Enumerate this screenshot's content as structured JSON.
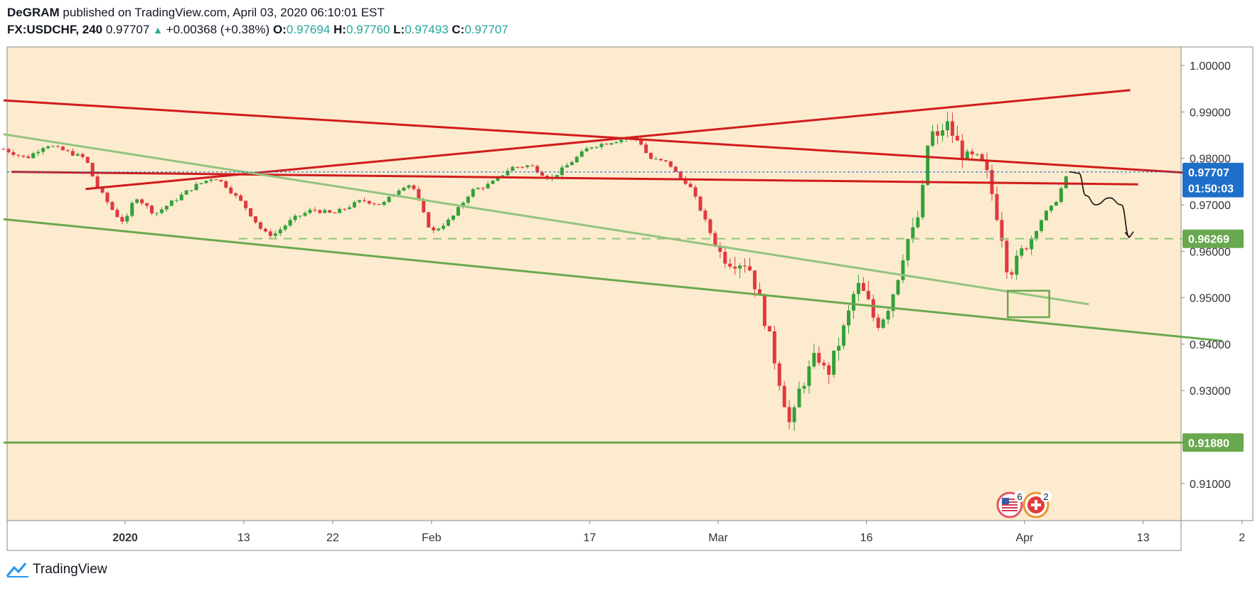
{
  "header": {
    "author": "DeGRAM",
    "published": "published on TradingView.com, April 03, 2020 06:10:01 EST",
    "symbol": "FX:USDCHF, 240",
    "last": "0.97707",
    "change": "+0.00368 (+0.38%)",
    "open_label": "O:",
    "open": "0.97694",
    "high_label": "H:",
    "high": "0.97760",
    "low_label": "L:",
    "low": "0.97493",
    "close_label": "C:",
    "close": "0.97707"
  },
  "footer": {
    "brand": "TradingView"
  },
  "colors": {
    "background": "#fdebcf",
    "up": "#33a03a",
    "down": "#e0393e",
    "red_line": "#d01c1c",
    "green_line": "#6aa84f",
    "light_green_line": "#93c47d",
    "price_label": "#1e6fc9",
    "support_label": "#6aa84f"
  },
  "chart_data": {
    "type": "candlestick",
    "symbol": "FX:USDCHF",
    "interval": "240",
    "ylim": [
      0.902,
      1.004
    ],
    "y_ticks": [
      "1.00000",
      "0.99000",
      "0.98000",
      "0.97000",
      "0.96000",
      "0.95000",
      "0.94000",
      "0.93000",
      "0.91000"
    ],
    "x_ticks": [
      {
        "label": "2020",
        "day": 0,
        "bold": true
      },
      {
        "label": "13",
        "day": 12
      },
      {
        "label": "22",
        "day": 21
      },
      {
        "label": "Feb",
        "day": 31
      },
      {
        "label": "17",
        "day": 47
      },
      {
        "label": "Mar",
        "day": 60
      },
      {
        "label": "16",
        "day": 75
      },
      {
        "label": "Apr",
        "day": 91
      },
      {
        "label": "13",
        "day": 103
      },
      {
        "label": "2",
        "day": 113
      }
    ],
    "price_path": [
      [
        -12.3,
        0.982
      ],
      [
        -10,
        0.98
      ],
      [
        -8,
        0.983
      ],
      [
        -6,
        0.9815
      ],
      [
        -4,
        0.98
      ],
      [
        -3,
        0.9745
      ],
      [
        -1,
        0.968
      ],
      [
        0,
        0.966
      ],
      [
        1,
        0.972
      ],
      [
        3,
        0.968
      ],
      [
        5,
        0.971
      ],
      [
        7,
        0.974
      ],
      [
        9,
        0.976
      ],
      [
        10,
        0.9745
      ],
      [
        12,
        0.97
      ],
      [
        14,
        0.964
      ],
      [
        15,
        0.9635
      ],
      [
        17,
        0.967
      ],
      [
        19,
        0.969
      ],
      [
        21,
        0.968
      ],
      [
        24,
        0.971
      ],
      [
        26,
        0.97
      ],
      [
        28,
        0.974
      ],
      [
        29,
        0.9745
      ],
      [
        30,
        0.969
      ],
      [
        31,
        0.964
      ],
      [
        33,
        0.967
      ],
      [
        35,
        0.973
      ],
      [
        37,
        0.9745
      ],
      [
        39,
        0.978
      ],
      [
        41,
        0.9785
      ],
      [
        43,
        0.9755
      ],
      [
        45,
        0.979
      ],
      [
        47,
        0.9825
      ],
      [
        49,
        0.9835
      ],
      [
        51,
        0.9845
      ],
      [
        52,
        0.984
      ],
      [
        53,
        0.98
      ],
      [
        55,
        0.979
      ],
      [
        56,
        0.976
      ],
      [
        57,
        0.9745
      ],
      [
        58,
        0.97
      ],
      [
        59,
        0.965
      ],
      [
        60,
        0.96
      ],
      [
        61,
        0.958
      ],
      [
        63,
        0.9575
      ],
      [
        64,
        0.951
      ],
      [
        65,
        0.943
      ],
      [
        66,
        0.934
      ],
      [
        67,
        0.925
      ],
      [
        67.4,
        0.921
      ],
      [
        68,
        0.929
      ],
      [
        70,
        0.938
      ],
      [
        71,
        0.933
      ],
      [
        73,
        0.945
      ],
      [
        74,
        0.953
      ],
      [
        75,
        0.95
      ],
      [
        76,
        0.944
      ],
      [
        77,
        0.947
      ],
      [
        78,
        0.953
      ],
      [
        79,
        0.962
      ],
      [
        80,
        0.965
      ],
      [
        80.7,
        0.973
      ],
      [
        81,
        0.98
      ],
      [
        81.5,
        0.987
      ],
      [
        82,
        0.983
      ],
      [
        83,
        0.988
      ],
      [
        84,
        0.984
      ],
      [
        85,
        0.98
      ],
      [
        86,
        0.98
      ],
      [
        87,
        0.978
      ],
      [
        88,
        0.97
      ],
      [
        88.5,
        0.965
      ],
      [
        89,
        0.961
      ],
      [
        89.3,
        0.955
      ],
      [
        90,
        0.957
      ],
      [
        91,
        0.961
      ],
      [
        92,
        0.964
      ],
      [
        93,
        0.968
      ],
      [
        94,
        0.97
      ],
      [
        94.8,
        0.974
      ],
      [
        95.5,
        0.9771
      ]
    ],
    "lines": [
      {
        "kind": "resistance",
        "color": "red_line",
        "points": [
          [
            -12.3,
            0.9925
          ],
          [
            110.5,
            0.9765
          ]
        ]
      },
      {
        "kind": "resistance",
        "color": "red_line",
        "points": [
          [
            -11.5,
            0.9771
          ],
          [
            102.5,
            0.9744
          ]
        ]
      },
      {
        "kind": "support",
        "color": "red_line",
        "points": [
          [
            -4,
            0.9734
          ],
          [
            101.7,
            0.9947
          ]
        ]
      },
      {
        "kind": "channel",
        "color": "light_green_line",
        "points": [
          [
            -12.3,
            0.9852
          ],
          [
            97.5,
            0.9486
          ]
        ]
      },
      {
        "kind": "channel",
        "color": "green_line",
        "points": [
          [
            -12.3,
            0.9669
          ],
          [
            111,
            0.9407
          ]
        ]
      },
      {
        "kind": "horizontal",
        "color": "green_line",
        "points": [
          [
            -12.3,
            0.9188
          ],
          [
            111,
            0.9188
          ]
        ]
      },
      {
        "kind": "dashed",
        "color": "light_green_line",
        "points": [
          [
            11.5,
            0.9627
          ],
          [
            111,
            0.9627
          ]
        ]
      }
    ],
    "box": {
      "x0": 89.3,
      "x1": 93.5,
      "y0": 0.9515,
      "y1": 0.9458
    },
    "projection": [
      [
        95.5,
        0.9771
      ],
      [
        96.5,
        0.9768
      ],
      [
        97.2,
        0.972
      ],
      [
        98.2,
        0.97
      ],
      [
        99.6,
        0.9715
      ],
      [
        100.8,
        0.97
      ],
      [
        101.6,
        0.963
      ]
    ],
    "price_labels": [
      {
        "text": "0.97707",
        "value": 0.97707,
        "color": "price_label"
      },
      {
        "text": "01:50:03",
        "value": 0.9736,
        "color": "price_label"
      },
      {
        "text": "0.96269",
        "value": 0.96269,
        "color": "support_label"
      },
      {
        "text": "0.91880",
        "value": 0.9188,
        "color": "support_label"
      }
    ],
    "events": [
      {
        "flag": "US",
        "count": "6"
      },
      {
        "flag": "CH",
        "count": "2"
      }
    ]
  }
}
